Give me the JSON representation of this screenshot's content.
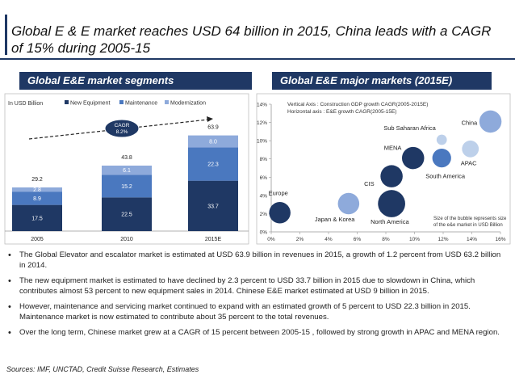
{
  "slide": {
    "title": "Global E & E market reaches USD 64 billion in 2015, China leads with a CAGR of 15% during 2005-15",
    "left_header": "Global E&E market segments",
    "right_header": "Global E&E major markets (2015E)",
    "sources": "Sources: IMF, UNCTAD, Credit Suisse Research, Estimates",
    "bullets": [
      "The Global Elevator and escalator market is estimated at USD 63.9 billion in revenues in 2015, a growth of 1.2 percent from USD 63.2 billion in 2014.",
      "The new equipment market is estimated to have declined by 2.3 percent to USD 33.7 billion in 2015 due to slowdown in China, which contributes almost 53 percent to new equipment sales in 2014. Chinese E&E market estimated at USD 9 billion in 2015.",
      "However, maintenance and servicing market continued to expand with an estimated growth of 5 percent to USD 22.3 billion in 2015. Maintenance market is now estimated to contribute about 35 percent to the total revenues.",
      "Over the long term, Chinese market grew at a CAGR of 15 percent between 2005-15 , followed by strong growth in APAC and MENA region."
    ]
  },
  "colors": {
    "navy": "#1f3864",
    "mid_blue": "#4a78bf",
    "light_blue": "#8eaadb",
    "pale_blue": "#bdd0ea"
  },
  "chart_data": [
    {
      "type": "bar",
      "stacked": true,
      "unit_label": "In USD Billion",
      "categories": [
        "2005",
        "2010",
        "2015E"
      ],
      "series": [
        {
          "name": "New Equipment",
          "color": "#1f3864",
          "values": [
            17.5,
            22.5,
            33.7
          ]
        },
        {
          "name": "Maintenance",
          "color": "#4a78bf",
          "values": [
            8.9,
            15.2,
            22.3
          ]
        },
        {
          "name": "Modernization",
          "color": "#8eaadb",
          "values": [
            2.8,
            6.1,
            8.0
          ]
        }
      ],
      "totals": [
        "29.2",
        "43.8",
        "63.9"
      ],
      "value_labels": [
        [
          "17.5",
          "8.9",
          "2.8"
        ],
        [
          "22.5",
          "15.2",
          "6.1"
        ],
        [
          "33.7",
          "22.3",
          "8.0"
        ]
      ],
      "cagr_label": [
        "CAGR",
        "8.2%"
      ],
      "legend_position": "top",
      "ylim": [
        0,
        75
      ]
    },
    {
      "type": "scatter",
      "subtype": "bubble",
      "axis_note_y": "Vertical Axis : Construction GDP growth CAGR(2005-2015E)",
      "axis_note_x": "Horizontal axis : E&E growth CAGR(2005-15E)",
      "size_note": [
        "Size of the bubble represents size",
        "of the e&e market in USD Billion"
      ],
      "xlim": [
        0,
        16
      ],
      "ylim": [
        0,
        14
      ],
      "x_ticks": [
        "0%",
        "2%",
        "4%",
        "6%",
        "8%",
        "10%",
        "12%",
        "14%",
        "16%"
      ],
      "y_ticks": [
        "0%",
        "2%",
        "4%",
        "6%",
        "8%",
        "10%",
        "12%",
        "14%"
      ],
      "points": [
        {
          "name": "Europe",
          "x": 0.6,
          "y": 2.1,
          "size": 6.5,
          "color": "#1f3864"
        },
        {
          "name": "Japan & Korea",
          "x": 5.4,
          "y": 3.1,
          "size": 6.5,
          "color": "#8eaadb"
        },
        {
          "name": "North America",
          "x": 8.4,
          "y": 3.1,
          "size": 10.5,
          "color": "#1f3864"
        },
        {
          "name": "CIS",
          "x": 8.4,
          "y": 6.1,
          "size": 7,
          "color": "#1f3864"
        },
        {
          "name": "MENA",
          "x": 9.9,
          "y": 8.1,
          "size": 7,
          "color": "#1f3864"
        },
        {
          "name": "South America",
          "x": 11.9,
          "y": 8.1,
          "size": 5,
          "color": "#4a78bf"
        },
        {
          "name": "Sub Saharan Africa",
          "x": 11.9,
          "y": 10.1,
          "size": 1.5,
          "color": "#bdd0ea"
        },
        {
          "name": "APAC",
          "x": 13.9,
          "y": 9.1,
          "size": 4,
          "color": "#bdd0ea"
        },
        {
          "name": "China",
          "x": 15.3,
          "y": 12.1,
          "size": 7,
          "color": "#8eaadb"
        }
      ]
    }
  ]
}
